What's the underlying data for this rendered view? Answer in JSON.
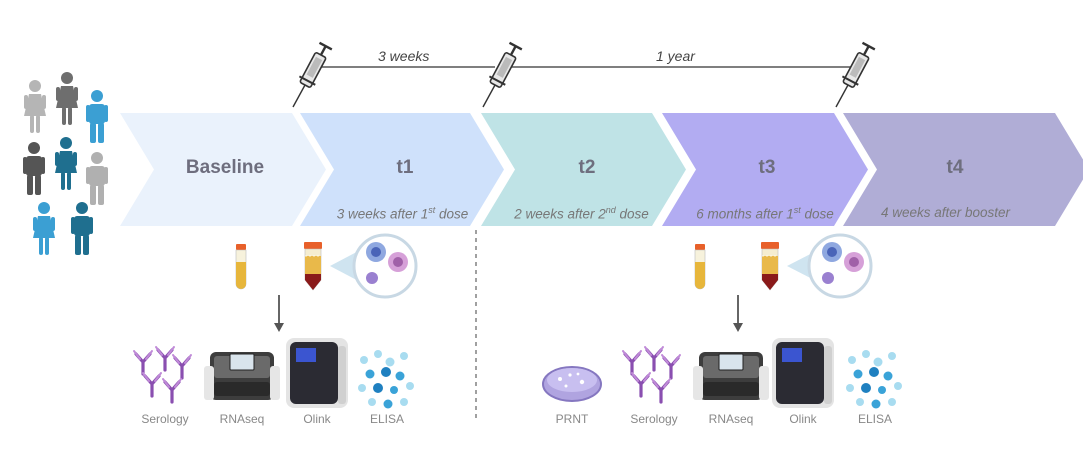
{
  "intervals": [
    {
      "label": "3 weeks"
    },
    {
      "label": "1 year"
    }
  ],
  "stages": [
    {
      "title": "Baseline",
      "subtitle": "",
      "color": "#eaf2fc"
    },
    {
      "title": "t1",
      "subtitle": "3 weeks after 1",
      "sup": "st",
      "suffix": " dose",
      "color": "#cfe1fb"
    },
    {
      "title": "t2",
      "subtitle": "2 weeks after 2",
      "sup": "nd",
      "suffix": " dose",
      "color": "#bfe3e6"
    },
    {
      "title": "t3",
      "subtitle": "6 months after 1",
      "sup": "st",
      "suffix": " dose",
      "color": "#b2acf2"
    },
    {
      "title": "t4",
      "subtitle": "4 weeks after booster",
      "sup": "",
      "suffix": "",
      "color": "#b0add6"
    }
  ],
  "assays_left": [
    "Serology",
    "RNAseq",
    "Olink",
    "ELISA"
  ],
  "assays_right": [
    "PRNT",
    "Serology",
    "RNAseq",
    "Olink",
    "ELISA"
  ],
  "colors": {
    "person_gray": "#a9a9a9",
    "person_dark": "#5a5a5a",
    "person_blue": "#3a9bd0",
    "person_teal": "#1f6f8f",
    "antibody_purple": "#8a4fb0",
    "elisa_blue": "#3aa3d8"
  }
}
